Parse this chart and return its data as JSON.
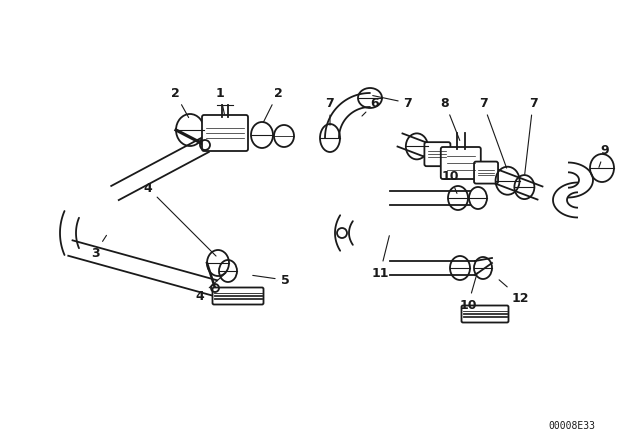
{
  "bg_color": "#ffffff",
  "line_color": "#1a1a1a",
  "fig_width": 6.4,
  "fig_height": 4.48,
  "dpi": 100,
  "part_number": "00008E33",
  "font_size_label": 9,
  "font_size_pn": 7
}
